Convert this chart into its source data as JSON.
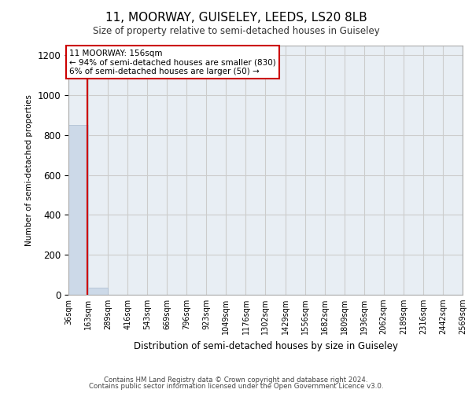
{
  "title": "11, MOORWAY, GUISELEY, LEEDS, LS20 8LB",
  "subtitle": "Size of property relative to semi-detached houses in Guiseley",
  "xlabel": "Distribution of semi-detached houses by size in Guiseley",
  "ylabel": "Number of semi-detached properties",
  "footer_line1": "Contains HM Land Registry data © Crown copyright and database right 2024.",
  "footer_line2": "Contains public sector information licensed under the Open Government Licence v3.0.",
  "bar_edges": [
    36,
    163,
    289,
    416,
    543,
    669,
    796,
    923,
    1049,
    1176,
    1302,
    1429,
    1556,
    1682,
    1809,
    1936,
    2062,
    2189,
    2316,
    2442,
    2569
  ],
  "bar_heights": [
    850,
    35,
    0,
    0,
    0,
    0,
    0,
    0,
    0,
    0,
    0,
    0,
    0,
    0,
    0,
    0,
    0,
    0,
    0,
    0
  ],
  "bar_color": "#ccd9e8",
  "bar_edge_color": "#aabbd0",
  "ylim": [
    0,
    1250
  ],
  "yticks": [
    0,
    200,
    400,
    600,
    800,
    1000,
    1200
  ],
  "property_size": 156,
  "property_line_color": "#cc0000",
  "annotation_text_line1": "11 MOORWAY: 156sqm",
  "annotation_text_line2": "← 94% of semi-detached houses are smaller (830)",
  "annotation_text_line3": "6% of semi-detached houses are larger (50) →",
  "annotation_box_color": "#ffffff",
  "annotation_box_edge_color": "#cc0000",
  "grid_color": "#cccccc",
  "plot_background": "#e8eef4"
}
